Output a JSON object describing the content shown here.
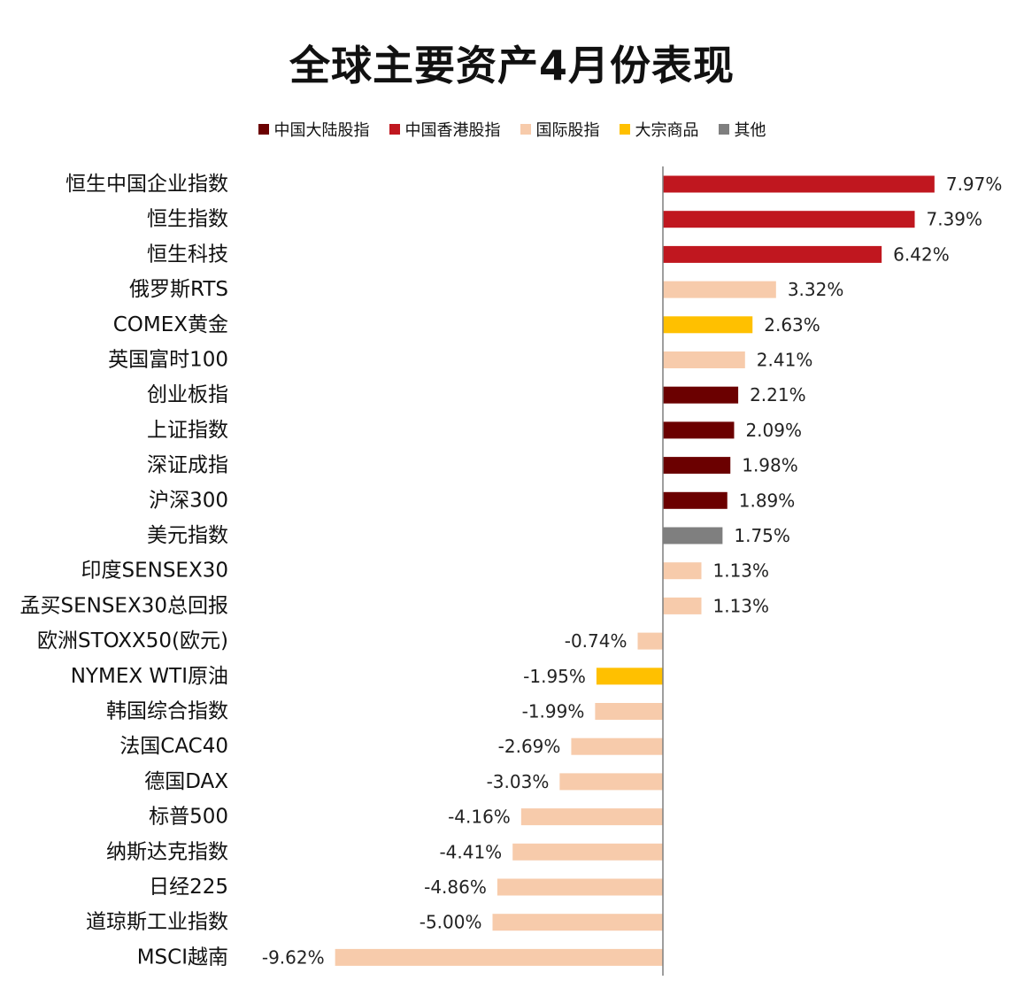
{
  "colors": {
    "mainland": "#6B0000",
    "hongkong": "#C0171F",
    "intl": "#F7CBAB",
    "commodity": "#FFC000",
    "other": "#7F7F7F"
  },
  "chart_data": {
    "type": "bar",
    "orientation": "horizontal",
    "title": "全球主要资产4月份表现",
    "legend": [
      {
        "key": "mainland",
        "label": "中国大陆股指"
      },
      {
        "key": "hongkong",
        "label": "中国香港股指"
      },
      {
        "key": "intl",
        "label": "国际股指"
      },
      {
        "key": "commodity",
        "label": "大宗商品"
      },
      {
        "key": "other",
        "label": "其他"
      }
    ],
    "legend_position": "top-center",
    "grid": false,
    "xlim": [
      -10,
      8.5
    ],
    "bars": [
      {
        "label": "恒生中国企业指数",
        "value": 7.97,
        "display": "7.97%",
        "group": "hongkong"
      },
      {
        "label": "恒生指数",
        "value": 7.39,
        "display": "7.39%",
        "group": "hongkong"
      },
      {
        "label": "恒生科技",
        "value": 6.42,
        "display": "6.42%",
        "group": "hongkong"
      },
      {
        "label": "俄罗斯RTS",
        "value": 3.32,
        "display": "3.32%",
        "group": "intl"
      },
      {
        "label": "COMEX黄金",
        "value": 2.63,
        "display": "2.63%",
        "group": "commodity"
      },
      {
        "label": "英国富时100",
        "value": 2.41,
        "display": "2.41%",
        "group": "intl"
      },
      {
        "label": "创业板指",
        "value": 2.21,
        "display": "2.21%",
        "group": "mainland"
      },
      {
        "label": "上证指数",
        "value": 2.09,
        "display": "2.09%",
        "group": "mainland"
      },
      {
        "label": "深证成指",
        "value": 1.98,
        "display": "1.98%",
        "group": "mainland"
      },
      {
        "label": "沪深300",
        "value": 1.89,
        "display": "1.89%",
        "group": "mainland"
      },
      {
        "label": "美元指数",
        "value": 1.75,
        "display": "1.75%",
        "group": "other"
      },
      {
        "label": "印度SENSEX30",
        "value": 1.13,
        "display": "1.13%",
        "group": "intl"
      },
      {
        "label": "孟买SENSEX30总回报",
        "value": 1.13,
        "display": "1.13%",
        "group": "intl"
      },
      {
        "label": "欧洲STOXX50(欧元)",
        "value": -0.74,
        "display": "-0.74%",
        "group": "intl"
      },
      {
        "label": "NYMEX WTI原油",
        "value": -1.95,
        "display": "-1.95%",
        "group": "commodity"
      },
      {
        "label": "韩国综合指数",
        "value": -1.99,
        "display": "-1.99%",
        "group": "intl"
      },
      {
        "label": "法国CAC40",
        "value": -2.69,
        "display": "-2.69%",
        "group": "intl"
      },
      {
        "label": "德国DAX",
        "value": -3.03,
        "display": "-3.03%",
        "group": "intl"
      },
      {
        "label": "标普500",
        "value": -4.16,
        "display": "-4.16%",
        "group": "intl"
      },
      {
        "label": "纳斯达克指数",
        "value": -4.41,
        "display": "-4.41%",
        "group": "intl"
      },
      {
        "label": "日经225",
        "value": -4.86,
        "display": "-4.86%",
        "group": "intl"
      },
      {
        "label": "道琼斯工业指数",
        "value": -5.0,
        "display": "-5.00%",
        "group": "intl"
      },
      {
        "label": "MSCI越南",
        "value": -9.62,
        "display": "-9.62%",
        "group": "intl"
      }
    ]
  }
}
